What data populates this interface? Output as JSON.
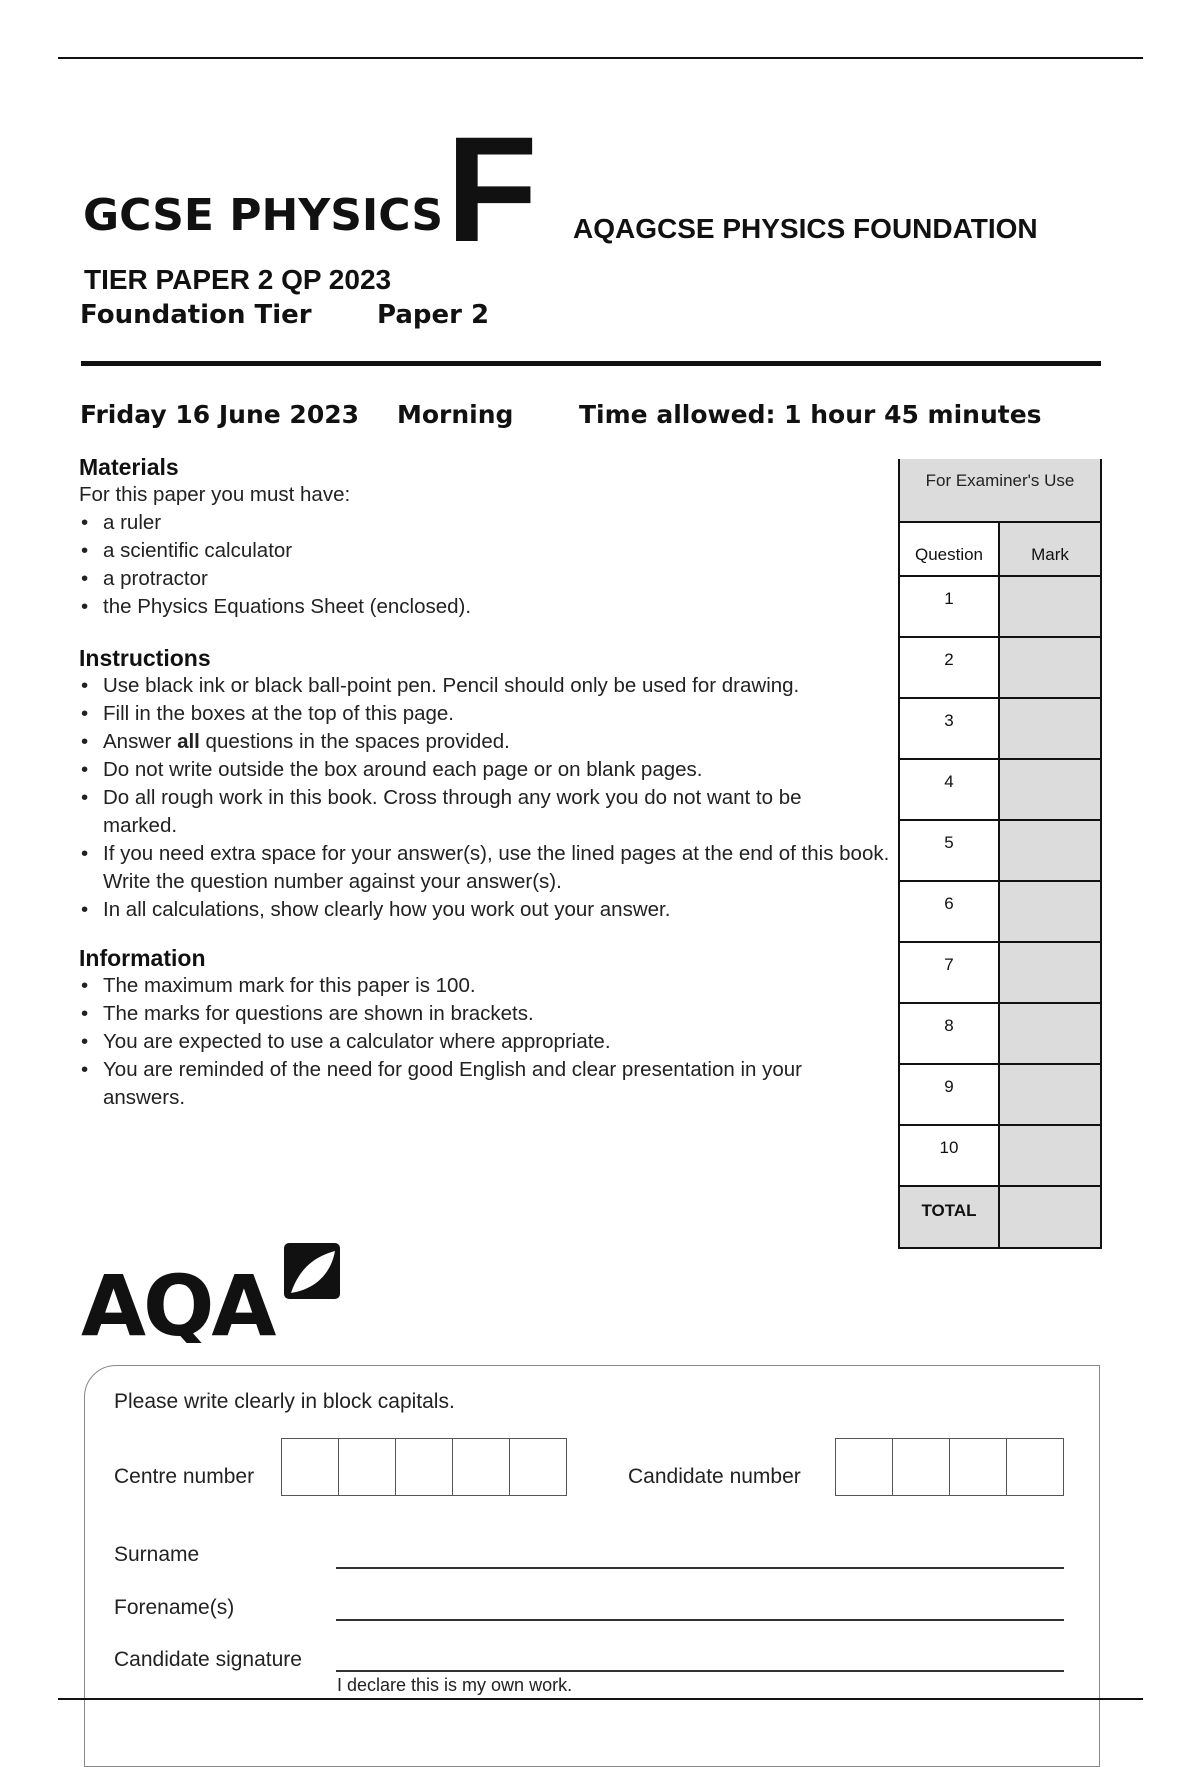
{
  "header": {
    "title": "GCSE PHYSICS",
    "tier_letter": "F",
    "doc_name": "AQAGCSE PHYSICS FOUNDATION",
    "subtitle": "TIER PAPER 2 QP 2023",
    "tier": "Foundation Tier",
    "paper": "Paper 2"
  },
  "exam_info": {
    "date": "Friday 16 June 2023",
    "session": "Morning",
    "time_allowed": "Time allowed: 1 hour 45 minutes"
  },
  "materials": {
    "heading": "Materials",
    "intro": "For this paper you must have:",
    "items": [
      "a ruler",
      "a scientific calculator",
      "a protractor",
      "the Physics Equations Sheet (enclosed)."
    ]
  },
  "instructions": {
    "heading": "Instructions",
    "items": [
      "Use black ink or black ball-point pen.  Pencil should only be used for drawing.",
      "Fill in the boxes at the top of this page.",
      {
        "before": "Answer ",
        "bold": "all",
        "after": " questions in the spaces provided."
      },
      "Do not write outside the box around each page or on blank pages.",
      "Do all rough work in this book.  Cross through any work you do not want to be marked.",
      "If you need extra space for your answer(s), use the lined pages at the end of this book.  Write the question number against your answer(s).",
      "In all calculations, show clearly how you work out your answer."
    ]
  },
  "information": {
    "heading": "Information",
    "items": [
      "The maximum mark for this paper is 100.",
      "The marks for questions are shown in brackets.",
      "You are expected to use a calculator where appropriate.",
      "You are reminded of the need for good English and clear presentation in your answers."
    ]
  },
  "examiner_table": {
    "title": "For Examiner's Use",
    "col_question": "Question",
    "col_mark": "Mark",
    "questions": [
      "1",
      "2",
      "3",
      "4",
      "5",
      "6",
      "7",
      "8",
      "9",
      "10"
    ],
    "total_label": "TOTAL",
    "shade_color": "#dcdcdc"
  },
  "logo": {
    "text": "AQA"
  },
  "candidate_form": {
    "instruction": "Please write clearly in block capitals.",
    "centre_number_label": "Centre number",
    "candidate_number_label": "Candidate number",
    "surname_label": "Surname",
    "forename_label": "Forename(s)",
    "signature_label": "Candidate signature",
    "declaration": "I declare this is my own work."
  }
}
